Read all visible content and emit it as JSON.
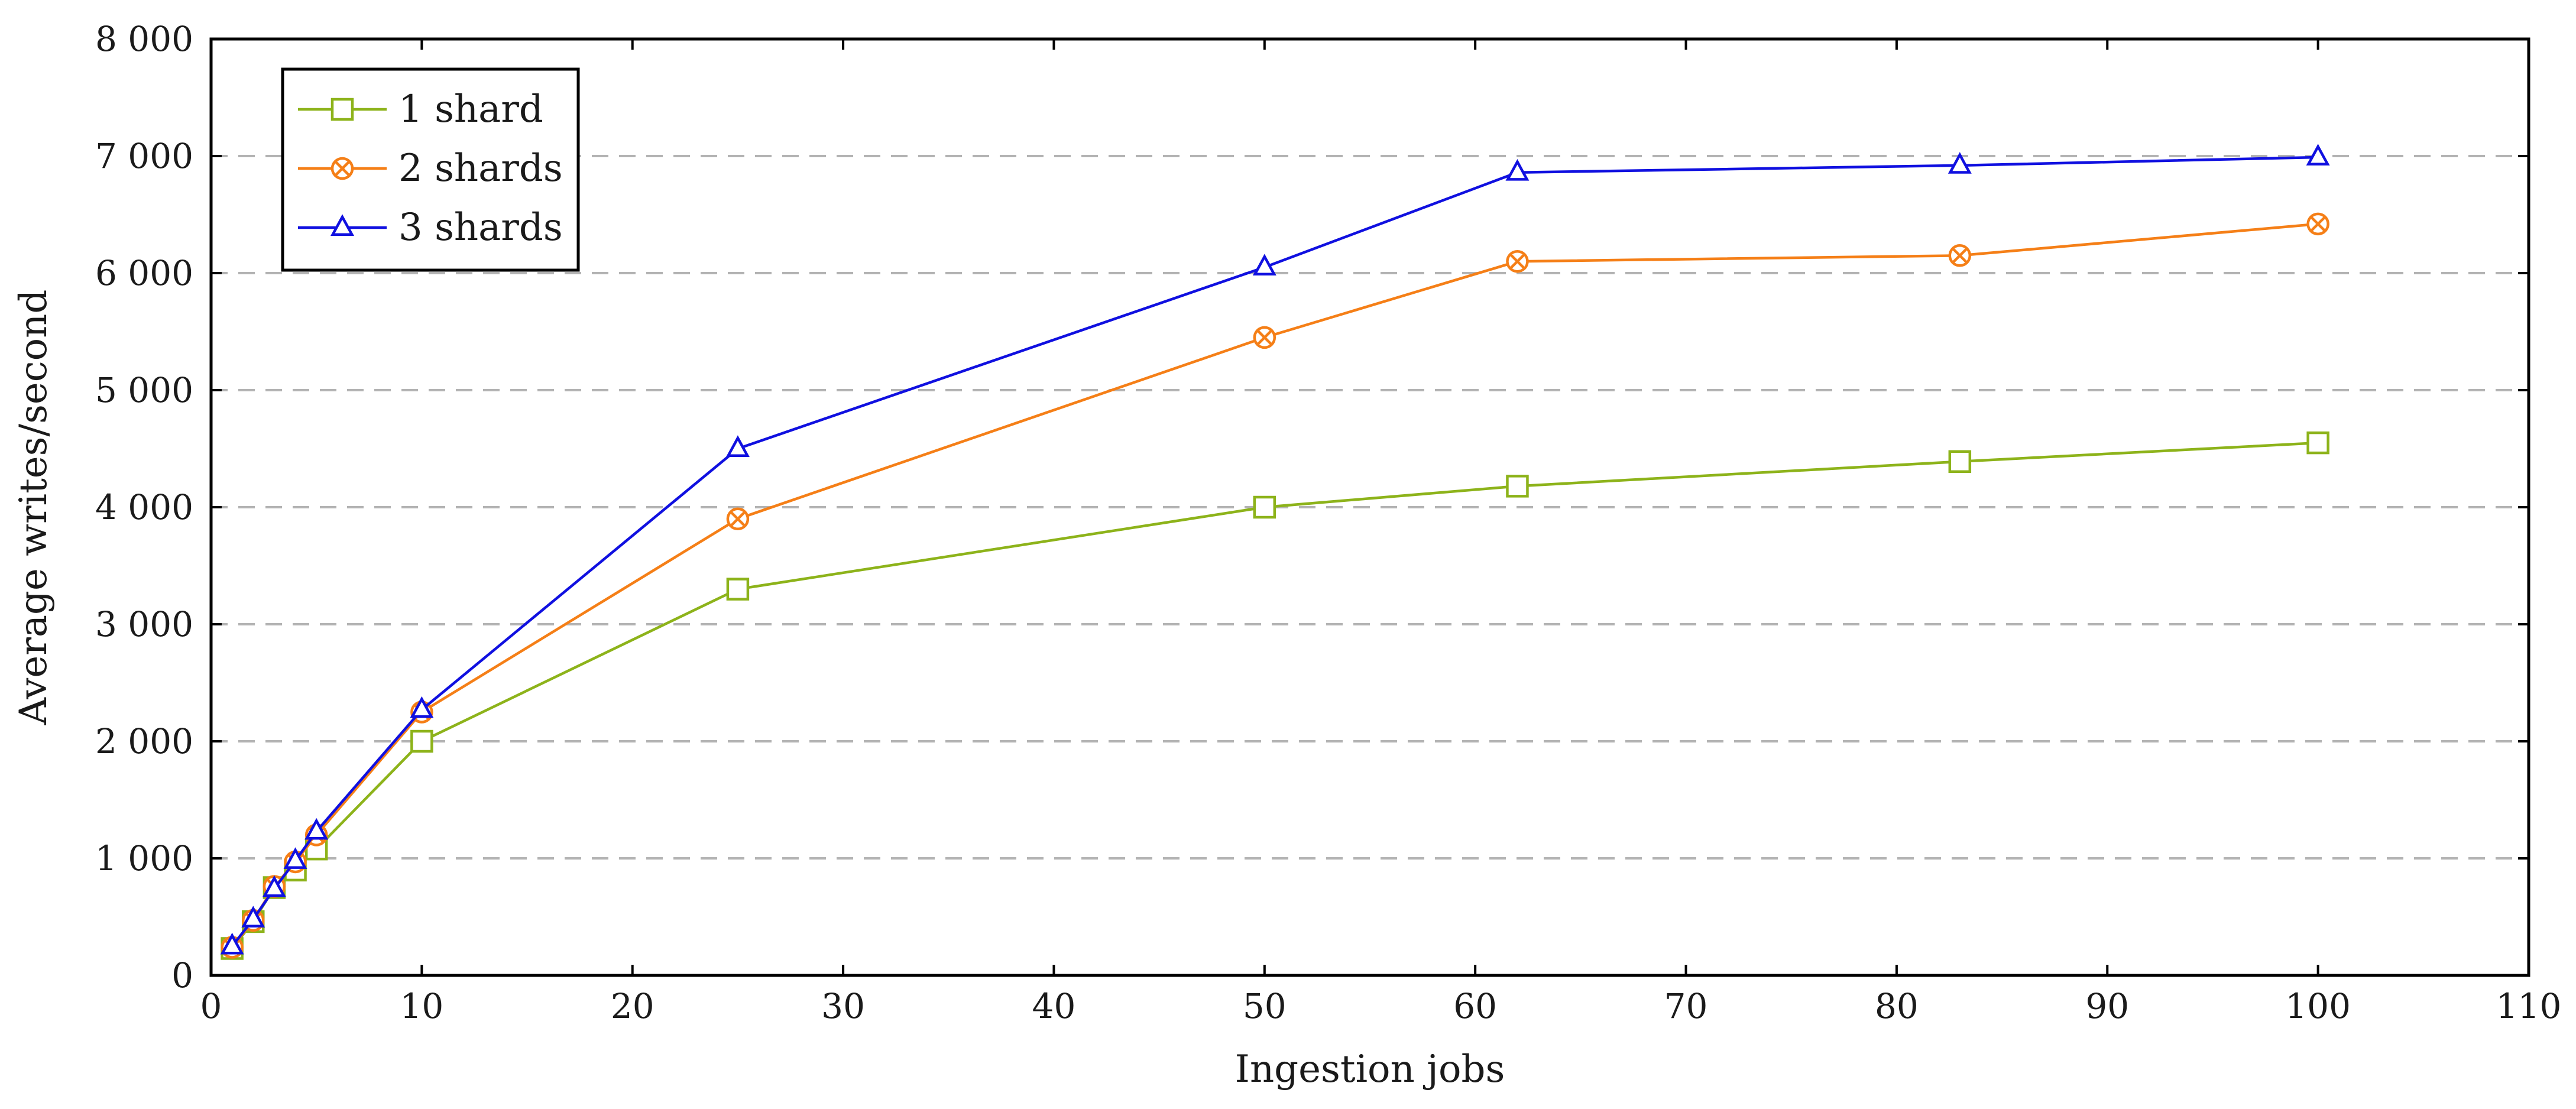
{
  "chart_data": {
    "type": "line",
    "title": "",
    "xlabel": "Ingestion jobs",
    "ylabel": "Average writes/second",
    "xlim": [
      0,
      110
    ],
    "ylim": [
      0,
      8000
    ],
    "x_ticks": [
      0,
      10,
      20,
      30,
      40,
      50,
      60,
      70,
      80,
      90,
      100,
      110
    ],
    "y_ticks": [
      0,
      1000,
      2000,
      3000,
      4000,
      5000,
      6000,
      7000,
      8000
    ],
    "x_tick_labels": [
      "0",
      "10",
      "20",
      "30",
      "40",
      "50",
      "60",
      "70",
      "80",
      "90",
      "100",
      "110"
    ],
    "y_tick_labels": [
      "0",
      "1 000",
      "2 000",
      "3 000",
      "4 000",
      "5 000",
      "6 000",
      "7 000",
      "8 000"
    ],
    "grid": "horizontal dashed",
    "legend_position": "top-left",
    "series": [
      {
        "name": "1 shard",
        "color": "#8db31a",
        "marker": "square",
        "x": [
          1,
          2,
          3,
          4,
          5,
          10,
          25,
          50,
          62,
          83,
          100
        ],
        "y": [
          230,
          460,
          750,
          900,
          1080,
          2000,
          3300,
          4000,
          4180,
          4390,
          4550
        ]
      },
      {
        "name": "2 shards",
        "color": "#f57f17",
        "marker": "circle-x",
        "x": [
          1,
          2,
          3,
          4,
          5,
          10,
          25,
          50,
          62,
          83,
          100
        ],
        "y": [
          240,
          470,
          760,
          970,
          1200,
          2250,
          3900,
          5450,
          6100,
          6150,
          6420
        ]
      },
      {
        "name": "3 shards",
        "color": "#1010e0",
        "marker": "triangle",
        "x": [
          1,
          2,
          3,
          4,
          5,
          10,
          25,
          50,
          62,
          83,
          100
        ],
        "y": [
          250,
          480,
          740,
          980,
          1230,
          2270,
          4500,
          6050,
          6860,
          6920,
          6990
        ]
      }
    ]
  }
}
